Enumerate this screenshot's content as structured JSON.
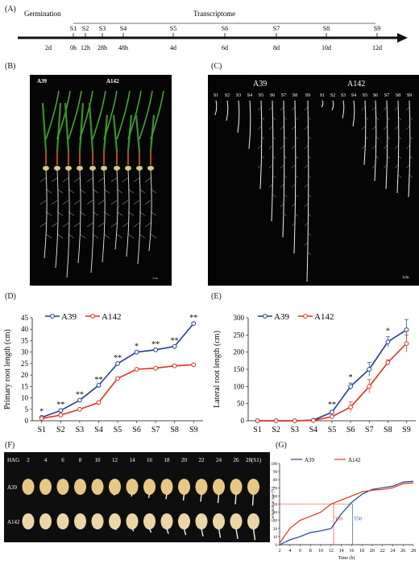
{
  "panel_labels": {
    "a": "(A)",
    "b": "(B)",
    "c": "(C)",
    "d": "(D)",
    "e": "(E)",
    "f": "(F)",
    "g": "(G)"
  },
  "timeline": {
    "germination_label": "Germination",
    "transcriptome_label": "Transcriptome",
    "stages": [
      "S1",
      "S2",
      "S3",
      "S4",
      "S5",
      "S6",
      "S7",
      "S8",
      "S9"
    ],
    "times": [
      "2d",
      "0h",
      "12h",
      "28h",
      "48h",
      "4d",
      "6d",
      "8d",
      "10d",
      "12d"
    ]
  },
  "photo_b": {
    "lines": [
      "A39",
      "A142"
    ],
    "scale": "1cm"
  },
  "photo_c": {
    "lines": [
      "A39",
      "A142"
    ],
    "stage_labels": [
      "S1",
      "S2",
      "S3",
      "S4",
      "S5",
      "S6",
      "S7",
      "S8",
      "S9"
    ],
    "scale": "1cm"
  },
  "photo_f": {
    "hag_label": "HAG",
    "hours": [
      "2",
      "4",
      "6",
      "8",
      "10",
      "12",
      "14",
      "16",
      "18",
      "20",
      "22",
      "24",
      "26",
      "28(S1)"
    ],
    "rows": [
      "A39",
      "A142"
    ]
  },
  "colors": {
    "a39": "#1f3f8f",
    "a142": "#e03020"
  },
  "chart_data": [
    {
      "type": "line",
      "ylabel": "Primary root length (cm)",
      "categories": [
        "S1",
        "S2",
        "S3",
        "S4",
        "S5",
        "S6",
        "S7",
        "S8",
        "S9"
      ],
      "ylim": [
        0,
        45
      ],
      "yticks": [
        "0",
        "5",
        "10",
        "15",
        "20",
        "25",
        "30",
        "35",
        "40",
        "45"
      ],
      "legend": [
        "A39",
        "A142"
      ],
      "series": [
        {
          "name": "A39",
          "values": [
            1.5,
            4.5,
            9,
            15.5,
            25,
            30,
            31,
            32.5,
            42.5
          ]
        },
        {
          "name": "A142",
          "values": [
            1,
            2.5,
            5,
            8,
            18.5,
            22.5,
            23,
            24,
            24.5
          ]
        }
      ],
      "significance": [
        "*",
        "**",
        "**",
        "**",
        "**",
        "*",
        "**",
        "**",
        "**"
      ]
    },
    {
      "type": "line",
      "ylabel": "Lateral root length (cm)",
      "categories": [
        "S1",
        "S2",
        "S3",
        "S4",
        "S5",
        "S6",
        "S7",
        "S8",
        "S9"
      ],
      "ylim": [
        0,
        300
      ],
      "yticks": [
        "0",
        "50",
        "100",
        "150",
        "200",
        "250",
        "300"
      ],
      "legend": [
        "A39",
        "A142"
      ],
      "series": [
        {
          "name": "A39",
          "values": [
            0,
            0,
            0,
            2,
            25,
            100,
            150,
            230,
            265
          ],
          "errors": [
            0,
            0,
            0,
            1,
            5,
            10,
            20,
            15,
            30
          ]
        },
        {
          "name": "A142",
          "values": [
            0,
            0,
            0,
            1,
            12,
            40,
            100,
            170,
            225
          ],
          "errors": [
            0,
            0,
            0,
            1,
            4,
            15,
            20,
            8,
            25
          ]
        }
      ],
      "significance": [
        "",
        "",
        "",
        "",
        "**",
        "*",
        "",
        "*",
        ""
      ]
    },
    {
      "type": "line",
      "ylabel": "Germination rate (%)",
      "xlabel": "Time (h)",
      "x": [
        2,
        4,
        6,
        8,
        10,
        12,
        14,
        16,
        18,
        20,
        22,
        24,
        26,
        28
      ],
      "xlim": [
        2,
        28
      ],
      "ylim": [
        0,
        100
      ],
      "yticks": [
        "0",
        "10",
        "20",
        "30",
        "40",
        "50",
        "60",
        "70",
        "80",
        "90",
        "100"
      ],
      "xticks": [
        "2",
        "4",
        "6",
        "8",
        "10",
        "12",
        "14",
        "16",
        "18",
        "20",
        "22",
        "24",
        "26",
        "28"
      ],
      "legend": [
        "A39",
        "A142"
      ],
      "series": [
        {
          "name": "A39",
          "values": [
            0,
            6,
            10,
            15,
            17,
            20,
            38,
            52,
            62,
            68,
            70,
            72,
            77,
            78
          ]
        },
        {
          "name": "A142",
          "values": [
            2,
            20,
            30,
            35,
            40,
            50,
            55,
            60,
            65,
            67,
            68,
            70,
            75,
            76
          ]
        }
      ],
      "reference_y": 50,
      "annotations": [
        {
          "text": "T50",
          "x": 12.5,
          "color": "#e03020"
        },
        {
          "text": "T50",
          "x": 16.2,
          "color": "#1f3f8f"
        }
      ]
    }
  ]
}
